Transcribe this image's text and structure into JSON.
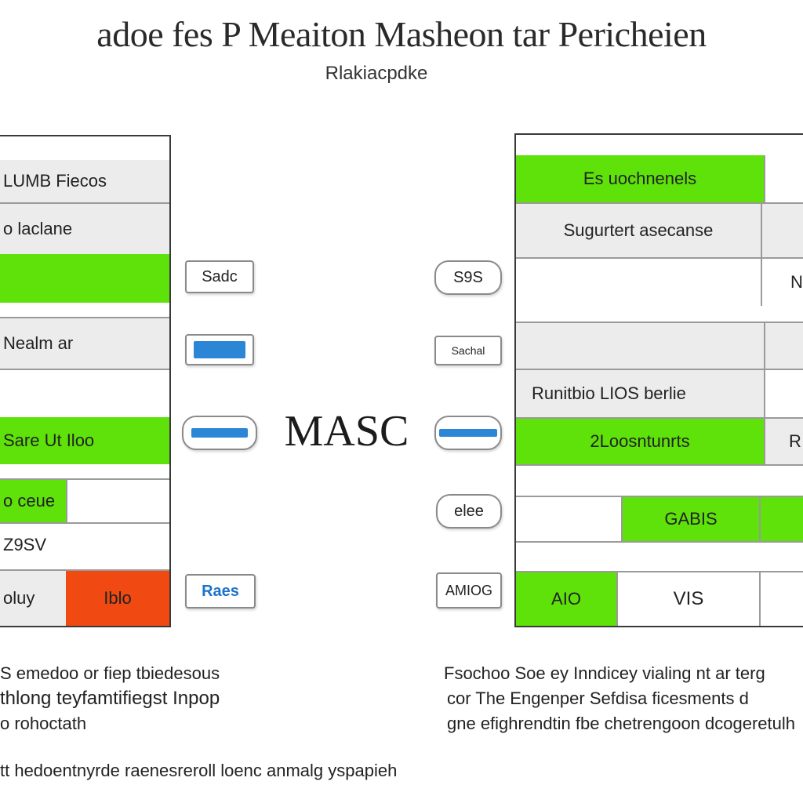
{
  "header": {
    "title": "adoe fes P Meaiton Masheon tar Pericheien",
    "subtitle": "Rlakiacpdke"
  },
  "left_table": {
    "rows": [
      {
        "label": "LUMB Fiecos",
        "fill": "gray"
      },
      {
        "label": "o laclane",
        "fill": "gray"
      },
      {
        "label": "",
        "fill": "green"
      },
      {
        "label": "Nealm ar",
        "fill": "gray"
      },
      {
        "label": "",
        "fill": "white"
      },
      {
        "label": "Sare Ut Iloo",
        "fill": "green"
      },
      {
        "label": "o ceue",
        "fill": "green"
      },
      {
        "label": "Z9SV",
        "fill": "white"
      },
      {
        "label": "oluy",
        "fill": "gray"
      }
    ],
    "bottom_right_cell": "Iblo"
  },
  "left_pills": [
    "Sadc",
    "",
    "",
    "Raes"
  ],
  "center_label": "MASC",
  "right_pills": [
    "S9S",
    "Sachal",
    "",
    "elee",
    "AMIOG"
  ],
  "right_table": {
    "rows": [
      {
        "label": "Es uochnenels",
        "fill": "green"
      },
      {
        "label": "Sugurtert asecanse",
        "fill": "gray"
      },
      {
        "label": "",
        "fill": "white",
        "side": "N"
      },
      {
        "label": "",
        "fill": "gray"
      },
      {
        "label": "Runitbio LIOS berlie",
        "fill": "gray"
      },
      {
        "label": "2Loosntunrts",
        "fill": "green",
        "side": "R"
      },
      {
        "label": "",
        "fill": "white"
      },
      {
        "label": "GABIS",
        "fill": "green"
      },
      {
        "label": "",
        "fill": "white"
      }
    ],
    "last_row": {
      "left": "AIO",
      "right": "VIS"
    }
  },
  "notes": {
    "left": [
      "S emedoo or fiep tbiedesous",
      "thlong teyfamtifiegst Inpop",
      "o rohoctath"
    ],
    "right": [
      "Fsochoo Soe ey Inndicey vialing nt ar terg",
      "cor The Engenper Sefdisa ficesments d",
      "gne efighrendtin fbe chetrengoon dcogeretulh"
    ],
    "footer": "tt hedoentnyrde raenesreroll loenc anmalg yspapieh"
  },
  "colors": {
    "green": "#5ee20a",
    "red": "#f04a12",
    "blue": "#2b86d6",
    "border": "#3a3a3a"
  }
}
